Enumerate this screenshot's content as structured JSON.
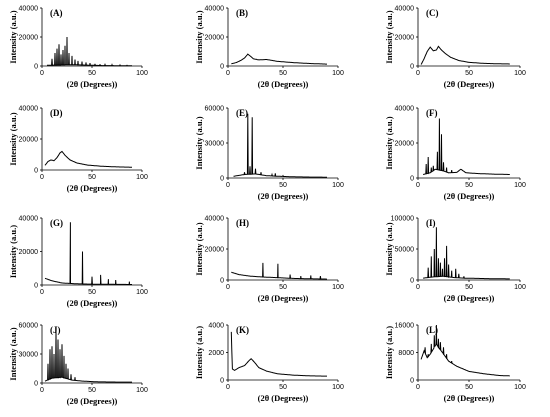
{
  "chart_data": [
    {
      "type": "line",
      "panel_label": "(A)",
      "xlabel": "(2θ (Degrees))",
      "ylabel": "Intensity (a.u.)",
      "xlim": [
        0,
        100
      ],
      "ylim": [
        0,
        40000
      ],
      "xticks": [
        0,
        50,
        100
      ],
      "yticks": [
        0,
        20000,
        40000
      ],
      "baseline": [
        [
          5,
          500
        ],
        [
          30,
          900
        ],
        [
          60,
          300
        ],
        [
          90,
          150
        ]
      ],
      "peaks": [
        [
          10,
          5000
        ],
        [
          13,
          9000
        ],
        [
          15,
          12000
        ],
        [
          17,
          15000
        ],
        [
          19,
          8000
        ],
        [
          21,
          11000
        ],
        [
          23,
          14000
        ],
        [
          25,
          20000
        ],
        [
          27,
          9000
        ],
        [
          30,
          7000
        ],
        [
          33,
          4500
        ],
        [
          36,
          3500
        ],
        [
          40,
          3000
        ],
        [
          44,
          2500
        ],
        [
          48,
          2000
        ],
        [
          53,
          1500
        ],
        [
          58,
          1200
        ],
        [
          63,
          1000
        ],
        [
          70,
          900
        ],
        [
          78,
          700
        ],
        [
          85,
          500
        ]
      ]
    },
    {
      "type": "line",
      "panel_label": "(B)",
      "xlabel": "(2θ (Degrees))",
      "ylabel": "Intensity (a.u.)",
      "xlim": [
        0,
        100
      ],
      "ylim": [
        0,
        40000
      ],
      "xticks": [
        0,
        50,
        100
      ],
      "yticks": [
        0,
        20000,
        40000
      ],
      "baseline": [
        [
          3,
          1500
        ],
        [
          8,
          2500
        ],
        [
          12,
          4000
        ],
        [
          15,
          5500
        ],
        [
          18,
          8200
        ],
        [
          20,
          7000
        ],
        [
          23,
          5000
        ],
        [
          28,
          4200
        ],
        [
          35,
          4500
        ],
        [
          45,
          3200
        ],
        [
          60,
          2300
        ],
        [
          75,
          1700
        ],
        [
          90,
          1300
        ]
      ],
      "peaks": []
    },
    {
      "type": "line",
      "panel_label": "(C)",
      "xlabel": "(2θ (Degrees))",
      "ylabel": "Intensity (a.u.)",
      "xlim": [
        0,
        100
      ],
      "ylim": [
        0,
        40000
      ],
      "xticks": [
        0,
        50,
        100
      ],
      "yticks": [
        0,
        20000,
        40000
      ],
      "baseline": [
        [
          3,
          1000
        ],
        [
          6,
          5000
        ],
        [
          9,
          10000
        ],
        [
          12,
          13000
        ],
        [
          15,
          10500
        ],
        [
          18,
          11000
        ],
        [
          20,
          13500
        ],
        [
          23,
          11000
        ],
        [
          27,
          8500
        ],
        [
          32,
          6000
        ],
        [
          40,
          3800
        ],
        [
          50,
          2500
        ],
        [
          65,
          1800
        ],
        [
          80,
          1500
        ],
        [
          90,
          1400
        ]
      ],
      "peaks": []
    },
    {
      "type": "line",
      "panel_label": "(D)",
      "xlabel": "(2θ (Degrees))",
      "ylabel": "Intensity (a.u.)",
      "xlim": [
        0,
        100
      ],
      "ylim": [
        0,
        40000
      ],
      "xticks": [
        0,
        50,
        100
      ],
      "yticks": [
        0,
        20000,
        40000
      ],
      "baseline": [
        [
          3,
          3000
        ],
        [
          6,
          5500
        ],
        [
          9,
          6500
        ],
        [
          12,
          6000
        ],
        [
          15,
          8000
        ],
        [
          18,
          11000
        ],
        [
          20,
          12000
        ],
        [
          23,
          9500
        ],
        [
          28,
          6500
        ],
        [
          35,
          4500
        ],
        [
          45,
          3200
        ],
        [
          60,
          2400
        ],
        [
          75,
          2000
        ],
        [
          90,
          1800
        ]
      ],
      "peaks": []
    },
    {
      "type": "line",
      "panel_label": "(E)",
      "xlabel": "(2θ (Degrees))",
      "ylabel": "Intensity (a.u.)",
      "xlim": [
        0,
        100
      ],
      "ylim": [
        0,
        60000
      ],
      "xticks": [
        0,
        50,
        100
      ],
      "yticks": [
        0,
        30000,
        60000
      ],
      "baseline": [
        [
          5,
          1500
        ],
        [
          15,
          3000
        ],
        [
          25,
          3500
        ],
        [
          35,
          2000
        ],
        [
          45,
          1500
        ],
        [
          60,
          1000
        ],
        [
          75,
          800
        ],
        [
          90,
          700
        ]
      ],
      "peaks": [
        [
          15,
          5000
        ],
        [
          18,
          55000
        ],
        [
          20,
          10000
        ],
        [
          22,
          52000
        ],
        [
          25,
          8000
        ],
        [
          30,
          5000
        ],
        [
          40,
          3000
        ],
        [
          43,
          4000
        ],
        [
          50,
          2000
        ]
      ]
    },
    {
      "type": "line",
      "panel_label": "(F)",
      "xlabel": "(2θ (Degrees))",
      "ylabel": "Intensity (a.u.)",
      "xlim": [
        0,
        100
      ],
      "ylim": [
        0,
        40000
      ],
      "xticks": [
        0,
        50,
        100
      ],
      "yticks": [
        0,
        20000,
        40000
      ],
      "baseline": [
        [
          5,
          2000
        ],
        [
          12,
          3000
        ],
        [
          17,
          5000
        ],
        [
          25,
          4000
        ],
        [
          30,
          3000
        ],
        [
          38,
          3200
        ],
        [
          42,
          5000
        ],
        [
          47,
          3000
        ],
        [
          60,
          2500
        ],
        [
          75,
          2200
        ],
        [
          90,
          2000
        ]
      ],
      "peaks": [
        [
          8,
          8000
        ],
        [
          10,
          12000
        ],
        [
          13,
          6000
        ],
        [
          15,
          7000
        ],
        [
          19,
          15000
        ],
        [
          21,
          34000
        ],
        [
          23,
          25000
        ],
        [
          25,
          9000
        ],
        [
          28,
          6000
        ],
        [
          33,
          4500
        ]
      ]
    },
    {
      "type": "line",
      "panel_label": "(G)",
      "xlabel": "(2θ (Degrees))",
      "ylabel": "Intensity (a.u.)",
      "xlim": [
        0,
        100
      ],
      "ylim": [
        0,
        40000
      ],
      "xticks": [
        0,
        50,
        100
      ],
      "yticks": [
        0,
        20000,
        40000
      ],
      "baseline": [
        [
          3,
          4000
        ],
        [
          10,
          2500
        ],
        [
          20,
          1200
        ],
        [
          35,
          700
        ],
        [
          50,
          500
        ],
        [
          70,
          400
        ],
        [
          90,
          300
        ]
      ],
      "peaks": [
        [
          28.4,
          37500
        ],
        [
          40.5,
          20000
        ],
        [
          50,
          5000
        ],
        [
          58.6,
          6000
        ],
        [
          66.4,
          3500
        ],
        [
          73.7,
          3000
        ],
        [
          87.4,
          2000
        ]
      ]
    },
    {
      "type": "line",
      "panel_label": "(H)",
      "xlabel": "(2θ (Degrees))",
      "ylabel": "Intensity (a.u.)",
      "xlim": [
        0,
        100
      ],
      "ylim": [
        0,
        40000
      ],
      "xticks": [
        0,
        50,
        100
      ],
      "yticks": [
        0,
        20000,
        40000
      ],
      "baseline": [
        [
          3,
          5000
        ],
        [
          10,
          3500
        ],
        [
          20,
          2500
        ],
        [
          30,
          2000
        ],
        [
          45,
          1500
        ],
        [
          60,
          1000
        ],
        [
          80,
          700
        ],
        [
          90,
          600
        ]
      ],
      "peaks": [
        [
          31.7,
          11000
        ],
        [
          45.4,
          10500
        ],
        [
          56.5,
          3500
        ],
        [
          66.2,
          2500
        ],
        [
          75.3,
          3000
        ],
        [
          84,
          2500
        ]
      ]
    },
    {
      "type": "line",
      "panel_label": "(I)",
      "xlabel": "(2θ (Degrees))",
      "ylabel": "Intensity (a.u.)",
      "xlim": [
        0,
        100
      ],
      "ylim": [
        0,
        100000
      ],
      "xticks": [
        0,
        50,
        100
      ],
      "yticks": [
        0,
        50000,
        100000
      ],
      "baseline": [
        [
          5,
          3000
        ],
        [
          15,
          5000
        ],
        [
          25,
          6000
        ],
        [
          35,
          4000
        ],
        [
          45,
          3000
        ],
        [
          60,
          2500
        ],
        [
          75,
          2000
        ],
        [
          90,
          1800
        ]
      ],
      "peaks": [
        [
          10,
          20000
        ],
        [
          13,
          38000
        ],
        [
          16,
          50000
        ],
        [
          18,
          85000
        ],
        [
          20,
          35000
        ],
        [
          22,
          28000
        ],
        [
          24,
          18000
        ],
        [
          26,
          35000
        ],
        [
          28,
          55000
        ],
        [
          30,
          25000
        ],
        [
          33,
          15000
        ],
        [
          37,
          18000
        ],
        [
          40,
          10000
        ],
        [
          45,
          6000
        ]
      ]
    },
    {
      "type": "line",
      "panel_label": "(J)",
      "xlabel": "(2θ (Degrees))",
      "ylabel": "Intensity (a.u.)",
      "xlim": [
        0,
        100
      ],
      "ylim": [
        0,
        60000
      ],
      "xticks": [
        0,
        50,
        100
      ],
      "yticks": [
        0,
        30000,
        60000
      ],
      "baseline": [
        [
          3,
          2000
        ],
        [
          10,
          5000
        ],
        [
          20,
          6000
        ],
        [
          30,
          3000
        ],
        [
          40,
          2000
        ],
        [
          55,
          1200
        ],
        [
          70,
          1000
        ],
        [
          90,
          900
        ]
      ],
      "peaks": [
        [
          6,
          20000
        ],
        [
          8,
          35000
        ],
        [
          10,
          38000
        ],
        [
          12,
          30000
        ],
        [
          14,
          55000
        ],
        [
          16,
          45000
        ],
        [
          18,
          35000
        ],
        [
          20,
          40000
        ],
        [
          22,
          28000
        ],
        [
          24,
          20000
        ],
        [
          26,
          15000
        ],
        [
          29,
          9000
        ],
        [
          33,
          6000
        ]
      ]
    },
    {
      "type": "line",
      "panel_label": "(K)",
      "xlabel": "(2θ (Degrees))",
      "ylabel": "Intensity (a.u.)",
      "xlim": [
        0,
        100
      ],
      "ylim": [
        0,
        4000
      ],
      "xticks": [
        0,
        50,
        100
      ],
      "yticks": [
        0,
        2000,
        4000
      ],
      "baseline": [
        [
          3,
          3500
        ],
        [
          4,
          800
        ],
        [
          6,
          700
        ],
        [
          10,
          900
        ],
        [
          15,
          1050
        ],
        [
          19,
          1400
        ],
        [
          21,
          1550
        ],
        [
          24,
          1300
        ],
        [
          28,
          900
        ],
        [
          35,
          650
        ],
        [
          45,
          450
        ],
        [
          60,
          350
        ],
        [
          75,
          300
        ],
        [
          90,
          280
        ]
      ],
      "peaks": []
    },
    {
      "type": "line",
      "panel_label": "(L)",
      "xlabel": "(2θ (Degrees))",
      "ylabel": "Intensity (a.u.)",
      "xlim": [
        0,
        100
      ],
      "ylim": [
        0,
        16000
      ],
      "xticks": [
        0,
        50,
        100
      ],
      "yticks": [
        0,
        8000,
        16000
      ],
      "baseline": [
        [
          3,
          6000
        ],
        [
          6,
          8500
        ],
        [
          9,
          6500
        ],
        [
          12,
          7500
        ],
        [
          15,
          9000
        ],
        [
          18,
          10500
        ],
        [
          20,
          9500
        ],
        [
          24,
          8000
        ],
        [
          30,
          5500
        ],
        [
          38,
          4000
        ],
        [
          50,
          2500
        ],
        [
          65,
          1800
        ],
        [
          80,
          1300
        ],
        [
          90,
          1200
        ]
      ],
      "peaks": [
        [
          7,
          9500
        ],
        [
          10,
          7500
        ],
        [
          13,
          10500
        ],
        [
          16,
          13000
        ],
        [
          18,
          16000
        ],
        [
          20,
          12000
        ],
        [
          22,
          11000
        ],
        [
          25,
          9500
        ],
        [
          28,
          7500
        ],
        [
          33,
          5500
        ]
      ]
    }
  ]
}
